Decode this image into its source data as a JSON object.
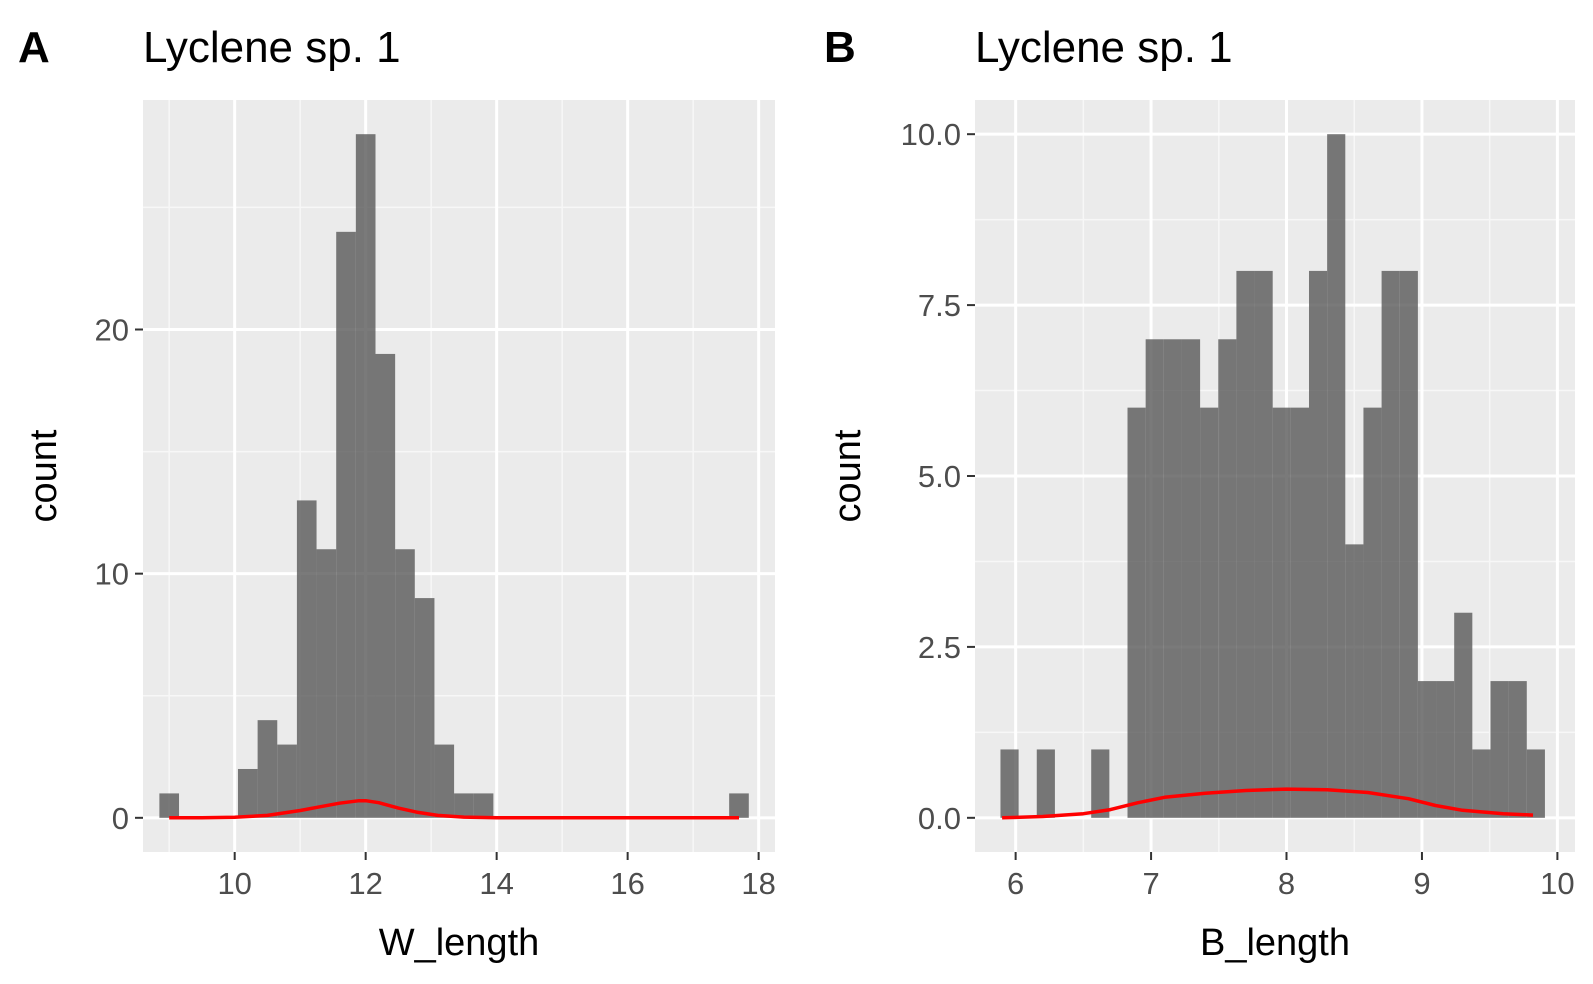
{
  "chart_data": [
    {
      "type": "bar",
      "panel_label": "A",
      "title": "Lyclene sp. 1",
      "xlabel": "W_length",
      "ylabel": "count",
      "xlim": [
        8.6,
        18.25
      ],
      "ylim": [
        -1.4,
        29.4
      ],
      "x_ticks": [
        10,
        12,
        14,
        16,
        18
      ],
      "x_tick_labels": [
        "10",
        "12",
        "14",
        "16",
        "18"
      ],
      "y_ticks": [
        0,
        10,
        20
      ],
      "y_tick_labels": [
        "0",
        "10",
        "20"
      ],
      "bar_color": "#595959",
      "bins": [
        {
          "x0": 8.85,
          "x1": 9.15,
          "count": 1
        },
        {
          "x0": 10.05,
          "x1": 10.35,
          "count": 2
        },
        {
          "x0": 10.35,
          "x1": 10.65,
          "count": 4
        },
        {
          "x0": 10.65,
          "x1": 10.95,
          "count": 3
        },
        {
          "x0": 10.95,
          "x1": 11.25,
          "count": 13
        },
        {
          "x0": 11.25,
          "x1": 11.55,
          "count": 11
        },
        {
          "x0": 11.55,
          "x1": 11.85,
          "count": 24
        },
        {
          "x0": 11.85,
          "x1": 12.15,
          "count": 28
        },
        {
          "x0": 12.15,
          "x1": 12.45,
          "count": 19
        },
        {
          "x0": 12.45,
          "x1": 12.75,
          "count": 11
        },
        {
          "x0": 12.75,
          "x1": 13.05,
          "count": 9
        },
        {
          "x0": 13.05,
          "x1": 13.35,
          "count": 3
        },
        {
          "x0": 13.35,
          "x1": 13.65,
          "count": 1
        },
        {
          "x0": 13.65,
          "x1": 13.95,
          "count": 1
        },
        {
          "x0": 17.55,
          "x1": 17.85,
          "count": 1
        }
      ],
      "density_curve": {
        "color": "#ff0000",
        "x": [
          9.0,
          9.5,
          10.0,
          10.5,
          11.0,
          11.3,
          11.6,
          11.9,
          12.0,
          12.2,
          12.5,
          12.8,
          13.1,
          13.5,
          14.0,
          15.0,
          16.0,
          17.0,
          17.7
        ],
        "y": [
          0,
          0,
          0.02,
          0.1,
          0.3,
          0.45,
          0.6,
          0.7,
          0.7,
          0.62,
          0.4,
          0.22,
          0.1,
          0.03,
          0,
          0,
          0,
          0,
          0
        ]
      }
    },
    {
      "type": "bar",
      "panel_label": "B",
      "title": "Lyclene sp. 1",
      "xlabel": "B_length",
      "ylabel": "count",
      "xlim": [
        5.7,
        10.13
      ],
      "ylim": [
        -0.5,
        10.5
      ],
      "x_ticks": [
        6,
        7,
        8,
        9,
        10
      ],
      "x_tick_labels": [
        "6",
        "7",
        "8",
        "9",
        "10"
      ],
      "y_ticks": [
        0,
        2.5,
        5,
        7.5,
        10
      ],
      "y_tick_labels": [
        "0.0",
        "2.5",
        "5.0",
        "7.5",
        "10.0"
      ],
      "bar_color": "#595959",
      "bins": [
        {
          "x0": 5.888,
          "x1": 6.022,
          "count": 1
        },
        {
          "x0": 6.156,
          "x1": 6.29,
          "count": 1
        },
        {
          "x0": 6.558,
          "x1": 6.692,
          "count": 1
        },
        {
          "x0": 6.826,
          "x1": 6.96,
          "count": 6
        },
        {
          "x0": 6.96,
          "x1": 7.094,
          "count": 7
        },
        {
          "x0": 7.094,
          "x1": 7.228,
          "count": 7
        },
        {
          "x0": 7.228,
          "x1": 7.362,
          "count": 7
        },
        {
          "x0": 7.362,
          "x1": 7.496,
          "count": 6
        },
        {
          "x0": 7.496,
          "x1": 7.63,
          "count": 7
        },
        {
          "x0": 7.63,
          "x1": 7.764,
          "count": 8
        },
        {
          "x0": 7.764,
          "x1": 7.898,
          "count": 8
        },
        {
          "x0": 7.898,
          "x1": 8.032,
          "count": 6
        },
        {
          "x0": 8.032,
          "x1": 8.166,
          "count": 6
        },
        {
          "x0": 8.166,
          "x1": 8.3,
          "count": 8
        },
        {
          "x0": 8.3,
          "x1": 8.434,
          "count": 10
        },
        {
          "x0": 8.434,
          "x1": 8.568,
          "count": 4
        },
        {
          "x0": 8.568,
          "x1": 8.702,
          "count": 6
        },
        {
          "x0": 8.702,
          "x1": 8.836,
          "count": 8
        },
        {
          "x0": 8.836,
          "x1": 8.97,
          "count": 8
        },
        {
          "x0": 8.97,
          "x1": 9.104,
          "count": 2
        },
        {
          "x0": 9.104,
          "x1": 9.238,
          "count": 2
        },
        {
          "x0": 9.238,
          "x1": 9.372,
          "count": 3
        },
        {
          "x0": 9.372,
          "x1": 9.506,
          "count": 1
        },
        {
          "x0": 9.506,
          "x1": 9.64,
          "count": 2
        },
        {
          "x0": 9.64,
          "x1": 9.774,
          "count": 2
        },
        {
          "x0": 9.774,
          "x1": 9.908,
          "count": 1
        }
      ],
      "density_curve": {
        "color": "#ff0000",
        "x": [
          5.9,
          6.2,
          6.5,
          6.7,
          6.9,
          7.1,
          7.4,
          7.7,
          8.0,
          8.3,
          8.6,
          8.9,
          9.1,
          9.3,
          9.6,
          9.82
        ],
        "y": [
          0,
          0.02,
          0.06,
          0.12,
          0.22,
          0.3,
          0.36,
          0.4,
          0.42,
          0.41,
          0.37,
          0.28,
          0.18,
          0.11,
          0.06,
          0.04
        ]
      }
    }
  ]
}
